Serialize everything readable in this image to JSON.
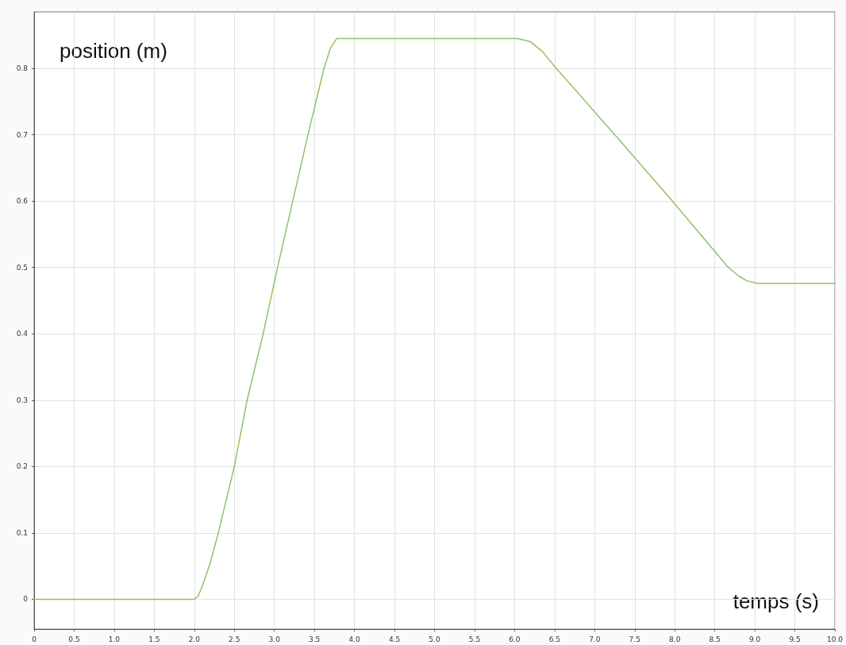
{
  "chart_data": {
    "type": "line",
    "xlabel": "temps (s)",
    "ylabel": "position (m)",
    "xlim": [
      0,
      10
    ],
    "ylim": [
      -0.045,
      0.885
    ],
    "xticks": [
      0,
      {
        "value": 0.5,
        "label": "0.5"
      },
      {
        "value": 1,
        "label": "1.0"
      },
      {
        "value": 1.5,
        "label": "1.5"
      },
      {
        "value": 2,
        "label": "2.0"
      },
      {
        "value": 2.5,
        "label": "2.5"
      },
      {
        "value": 3,
        "label": "3.0"
      },
      {
        "value": 3.5,
        "label": "3.5"
      },
      {
        "value": 4,
        "label": "4.0"
      },
      {
        "value": 4.5,
        "label": "4.5"
      },
      {
        "value": 5,
        "label": "5.0"
      },
      {
        "value": 5.5,
        "label": "5.5"
      },
      {
        "value": 6,
        "label": "6.0"
      },
      {
        "value": 6.5,
        "label": "6.5"
      },
      {
        "value": 7,
        "label": "7.0"
      },
      {
        "value": 7.5,
        "label": "7.5"
      },
      {
        "value": 8,
        "label": "8.0"
      },
      {
        "value": 8.5,
        "label": "8.5"
      },
      {
        "value": 9,
        "label": "9.0"
      },
      {
        "value": 9.5,
        "label": "9.5"
      },
      {
        "value": 10,
        "label": "10.0"
      }
    ],
    "yticks": [
      0,
      0.1,
      0.2,
      0.3,
      0.4,
      0.5,
      0.6,
      0.7,
      0.8
    ],
    "grid": true,
    "marker": "none",
    "line_style": "solid",
    "series": [
      {
        "color": "#8fc16a",
        "x": [
          0,
          2.0,
          2.05,
          2.1,
          2.2,
          2.3,
          2.5,
          2.66,
          2.86,
          3.04,
          3.23,
          3.42,
          3.62,
          3.7,
          3.78,
          6.04,
          6.2,
          6.35,
          6.52,
          6.69,
          7.25,
          7.97,
          8.67,
          8.8,
          8.9,
          9.03,
          10
        ],
        "values": [
          0,
          0,
          0.005,
          0.02,
          0.055,
          0.1,
          0.2,
          0.3,
          0.4,
          0.5,
          0.6,
          0.7,
          0.8,
          0.83,
          0.845,
          0.845,
          0.84,
          0.825,
          0.8,
          0.777,
          0.7,
          0.6,
          0.5,
          0.487,
          0.48,
          0.476,
          0.476
        ]
      }
    ]
  }
}
